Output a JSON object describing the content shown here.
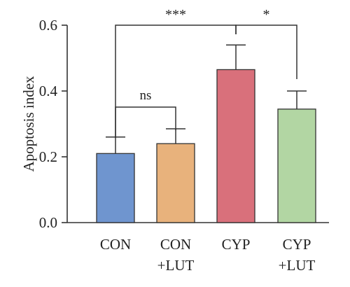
{
  "chart_data": {
    "type": "bar",
    "title": "",
    "xlabel": "",
    "ylabel": "Apoptosis index",
    "ylim": [
      0,
      0.6
    ],
    "yticks": [
      "0.0",
      "0.2",
      "0.4",
      "0.6"
    ],
    "grid": false,
    "legend": "none",
    "categories": [
      {
        "line1": "CON",
        "line2": ""
      },
      {
        "line1": "CON",
        "line2": "+LUT"
      },
      {
        "line1": "CYP",
        "line2": ""
      },
      {
        "line1": "CYP",
        "line2": "+LUT"
      }
    ],
    "values": [
      0.21,
      0.24,
      0.465,
      0.345
    ],
    "errors": [
      0.05,
      0.045,
      0.075,
      0.055
    ],
    "colors": [
      "#6f95cf",
      "#e8b27c",
      "#d9707b",
      "#b2d6a3"
    ],
    "significance": [
      {
        "from": 0,
        "to": 1,
        "label": "ns"
      },
      {
        "from": 0,
        "to": 2,
        "label": "***"
      },
      {
        "from": 2,
        "to": 3,
        "label": "*"
      }
    ]
  }
}
